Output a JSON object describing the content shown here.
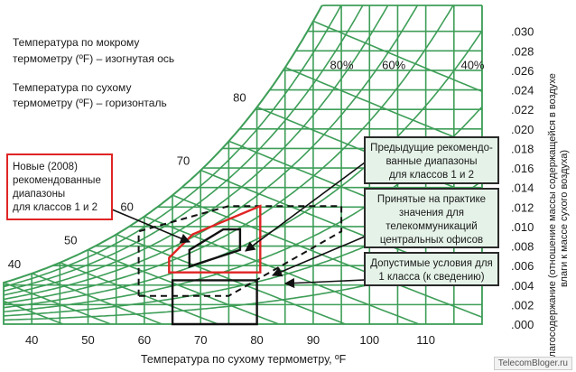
{
  "chart_data": {
    "type": "psychrometric",
    "title_lines": [
      "Температура по мокрому",
      "термометру (ºF) – изогнутая ось",
      "Температура по сухому",
      "термометру (ºF) – горизонталь"
    ],
    "xlabel": "Температура по сухому термометру, ºF",
    "ylabel_lines": [
      "Влагосодержание (отношение массы содержащейся в воздухе",
      "влаги к массе сухого воздуха)"
    ],
    "x_ticks": [
      "40",
      "50",
      "60",
      "70",
      "80",
      "90",
      "100",
      "110"
    ],
    "x_tick_values": [
      40,
      50,
      60,
      70,
      80,
      90,
      100,
      110
    ],
    "y_ticks": [
      ".000",
      ".002",
      ".004",
      ".006",
      ".008",
      ".010",
      ".012",
      ".014",
      ".016",
      ".018",
      ".020",
      ".022",
      ".024",
      ".026",
      ".028",
      ".030"
    ],
    "y_tick_values": [
      0.0,
      0.002,
      0.004,
      0.006,
      0.008,
      0.01,
      0.012,
      0.014,
      0.016,
      0.018,
      0.02,
      0.022,
      0.024,
      0.026,
      0.028,
      0.03
    ],
    "xlim": [
      35,
      120
    ],
    "ylim": [
      0,
      0.03
    ],
    "wet_bulb_labels": [
      {
        "text": "40",
        "t": 40
      },
      {
        "text": "50",
        "t": 50
      },
      {
        "text": "60",
        "t": 60
      },
      {
        "text": "70",
        "t": 70
      },
      {
        "text": "80",
        "t": 80
      }
    ],
    "rh_labels": [
      {
        "text": "80%",
        "rh": 80
      },
      {
        "text": "60%",
        "rh": 60
      },
      {
        "text": "40%",
        "rh": 40
      }
    ],
    "rh_curves": [
      10,
      20,
      30,
      40,
      50,
      60,
      70,
      80,
      90,
      100
    ],
    "regions": {
      "new_2008": [
        [
          64.4,
          0.0053
        ],
        [
          64.4,
          0.0068
        ],
        [
          68.6,
          0.0092
        ],
        [
          80.6,
          0.0121
        ],
        [
          80.6,
          0.0053
        ]
      ],
      "previous": [
        [
          68,
          0.0059
        ],
        [
          68,
          0.0076
        ],
        [
          74,
          0.0097
        ],
        [
          77,
          0.0097
        ],
        [
          77,
          0.0076
        ]
      ],
      "practice": [
        [
          59,
          0.0029
        ],
        [
          59,
          0.0095
        ],
        [
          75,
          0.0121
        ],
        [
          95,
          0.0121
        ],
        [
          95,
          0.0095
        ],
        [
          75,
          0.0029
        ]
      ],
      "class1": [
        [
          65,
          0.0
        ],
        [
          65,
          0.0045
        ],
        [
          80,
          0.0045
        ],
        [
          80,
          0.0
        ]
      ]
    },
    "annotations": [
      {
        "id": "new",
        "lines": [
          "Новые (2008)",
          "рекомендованные",
          "диапазоны",
          "для классов 1 и 2"
        ]
      },
      {
        "id": "prev",
        "lines": [
          "Предыдущие рекомендо-",
          "ванные диапазоны",
          "для классов 1 и 2"
        ]
      },
      {
        "id": "practice",
        "lines": [
          "Принятые на практике",
          "значения для",
          "телекоммуникаций",
          "центральных офисов"
        ]
      },
      {
        "id": "class1",
        "lines": [
          "Допустимые условия для",
          "1 класса (к сведению)"
        ]
      }
    ],
    "colors": {
      "grid": "#3e9e58",
      "new_region": "#e02424",
      "practice_region": "#111111",
      "box_fill": "#e5f2e8",
      "box_border": "#2a2a2a",
      "new_box_border": "#e02424"
    }
  },
  "watermark": "TelecomBloger.ru"
}
